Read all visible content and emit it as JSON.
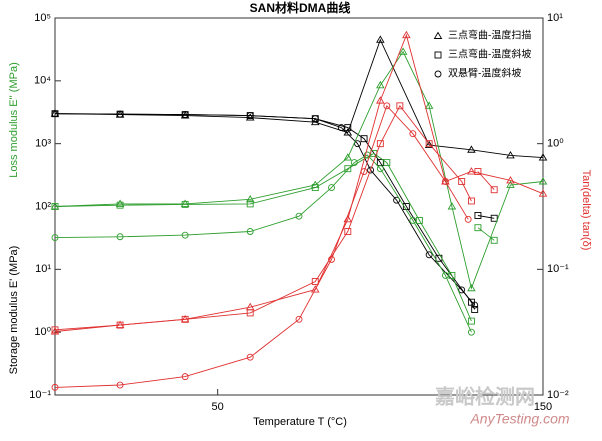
{
  "chart_data": {
    "type": "line",
    "title": "SAN材料DMA曲线",
    "xlabel": "Temperature T (°C)",
    "ylabel": "Storage modulus E' (MPa)",
    "ylabel_color": "#000000",
    "ylabel2": "Loss modulus E'' (MPa)",
    "ylabel2_color": "#2e9e2e",
    "y2label": "Tan(delta) tan(δ)",
    "y2label_color": "#e03030",
    "log_y": true,
    "log_y2": true,
    "xlim": [
      0,
      150
    ],
    "xticks": [
      50,
      150
    ],
    "ylim": [
      0.1,
      100000
    ],
    "yticks": [
      {
        "value": 0.1,
        "label": "10⁻¹"
      },
      {
        "value": 1,
        "label": "10⁰"
      },
      {
        "value": 10,
        "label": "10¹"
      },
      {
        "value": 100,
        "label": "10²"
      },
      {
        "value": 1000,
        "label": "10³"
      },
      {
        "value": 10000,
        "label": "10⁴"
      },
      {
        "value": 100000,
        "label": "10⁵"
      }
    ],
    "y2lim": [
      0.01,
      10
    ],
    "y2ticks": [
      {
        "value": 0.01,
        "label": "10⁻²"
      },
      {
        "value": 0.1,
        "label": "10⁻¹"
      },
      {
        "value": 1,
        "label": "10⁰"
      },
      {
        "value": 10,
        "label": "10¹"
      }
    ],
    "legend_position": "upper right",
    "legend": [
      {
        "name": "三点弯曲-温度扫描",
        "marker": "triangle"
      },
      {
        "name": "三点弯曲-温度斜坡",
        "marker": "square"
      },
      {
        "name": "双悬臂-温度斜坡",
        "marker": "circle"
      }
    ],
    "watermark": [
      "嘉峪检测网",
      "AnyTesting.com"
    ],
    "series": [
      {
        "marker": "triangle",
        "color": "#000000",
        "axis": "y",
        "x": [
          0,
          20,
          40,
          60,
          80,
          90,
          100,
          115,
          128,
          140,
          150
        ],
        "values": [
          3000,
          2900,
          2800,
          2600,
          2200,
          1500,
          45000,
          950,
          800,
          650,
          600
        ]
      },
      {
        "marker": "square",
        "color": "#000000",
        "axis": "y",
        "x": [
          0,
          20,
          40,
          60,
          80,
          90,
          95,
          100,
          108,
          118,
          128,
          129,
          null,
          130,
          135
        ],
        "values": [
          3000,
          2950,
          2900,
          2800,
          2500,
          1800,
          1200,
          500,
          100,
          15,
          3,
          2.3,
          null,
          72,
          65
        ]
      },
      {
        "marker": "circle",
        "color": "#000000",
        "axis": "y",
        "x": [
          0,
          20,
          40,
          60,
          80,
          88,
          93,
          97,
          105,
          115,
          125,
          129
        ],
        "values": [
          3000,
          2950,
          2900,
          2800,
          2500,
          1800,
          1000,
          380,
          126,
          17,
          4.7,
          2.7
        ]
      },
      {
        "marker": "triangle",
        "color": "#2e9e2e",
        "axis": "y",
        "x": [
          0,
          20,
          40,
          60,
          80,
          90,
          100,
          107,
          115,
          122,
          128,
          140,
          150
        ],
        "values": [
          100,
          110,
          110,
          130,
          220,
          600,
          8500,
          29000,
          4000,
          100,
          5,
          220,
          250
        ]
      },
      {
        "marker": "square",
        "color": "#2e9e2e",
        "axis": "y",
        "x": [
          0,
          20,
          40,
          60,
          80,
          90,
          98,
          102,
          112,
          122,
          128,
          null,
          130,
          135
        ],
        "values": [
          100,
          105,
          108,
          110,
          200,
          400,
          700,
          500,
          60,
          8,
          1.5,
          null,
          46,
          29
        ]
      },
      {
        "marker": "circle",
        "color": "#2e9e2e",
        "axis": "y",
        "x": [
          0,
          20,
          40,
          60,
          75,
          85,
          92,
          96,
          100,
          110,
          120,
          128
        ],
        "values": [
          32,
          33,
          35,
          40,
          70,
          200,
          500,
          660,
          400,
          60,
          8,
          1
        ]
      },
      {
        "marker": "triangle",
        "color": "#e03030",
        "axis": "y2",
        "x": [
          0,
          20,
          40,
          60,
          80,
          90,
          100,
          108,
          120,
          128,
          140,
          150
        ],
        "values": [
          0.032,
          0.036,
          0.04,
          0.05,
          0.069,
          0.25,
          2.2,
          7.3,
          0.5,
          0.6,
          0.51,
          0.4
        ]
      },
      {
        "marker": "square",
        "color": "#e03030",
        "axis": "y2",
        "x": [
          0,
          20,
          40,
          60,
          80,
          90,
          100,
          106,
          115,
          125,
          128,
          null,
          130,
          135
        ],
        "values": [
          0.033,
          0.036,
          0.04,
          0.045,
          0.08,
          0.2,
          1,
          2,
          1,
          0.5,
          0.35,
          null,
          0.6,
          0.43
        ]
      },
      {
        "marker": "circle",
        "color": "#e03030",
        "axis": "y2",
        "x": [
          0,
          20,
          40,
          60,
          75,
          85,
          95,
          102,
          110,
          120,
          127
        ],
        "values": [
          0.0115,
          0.012,
          0.014,
          0.02,
          0.04,
          0.12,
          0.6,
          2,
          1.2,
          0.5,
          0.25
        ]
      }
    ]
  }
}
